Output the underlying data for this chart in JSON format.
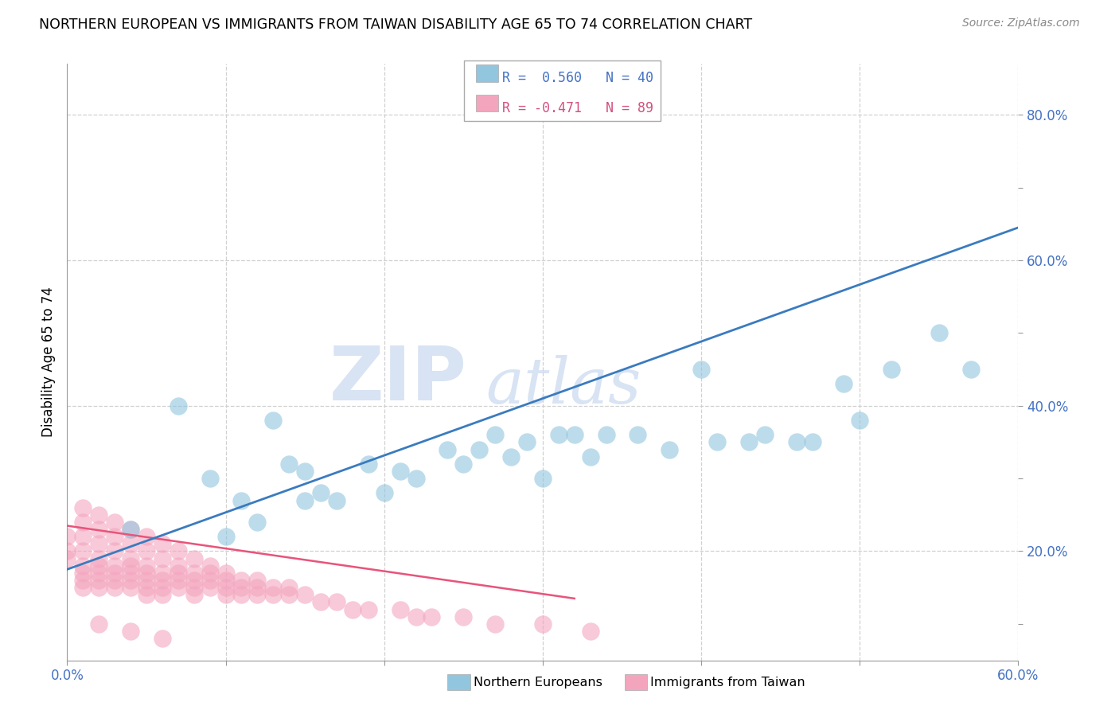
{
  "title": "NORTHERN EUROPEAN VS IMMIGRANTS FROM TAIWAN DISABILITY AGE 65 TO 74 CORRELATION CHART",
  "source": "Source: ZipAtlas.com",
  "ylabel": "Disability Age 65 to 74",
  "x_min": 0.0,
  "x_max": 0.6,
  "y_min": 0.05,
  "y_max": 0.87,
  "blue_color": "#92c5de",
  "pink_color": "#f4a5be",
  "blue_line_color": "#3a7bbf",
  "pink_line_color": "#e8547a",
  "watermark_text": "ZIP",
  "watermark_text2": "atlas",
  "blue_scatter_x": [
    0.04,
    0.07,
    0.09,
    0.1,
    0.11,
    0.12,
    0.13,
    0.14,
    0.15,
    0.15,
    0.16,
    0.17,
    0.19,
    0.2,
    0.21,
    0.22,
    0.24,
    0.25,
    0.26,
    0.27,
    0.28,
    0.29,
    0.3,
    0.31,
    0.32,
    0.33,
    0.34,
    0.36,
    0.38,
    0.4,
    0.41,
    0.43,
    0.44,
    0.46,
    0.47,
    0.49,
    0.5,
    0.52,
    0.55,
    0.57
  ],
  "blue_scatter_y": [
    0.23,
    0.4,
    0.3,
    0.22,
    0.27,
    0.24,
    0.38,
    0.32,
    0.27,
    0.31,
    0.28,
    0.27,
    0.32,
    0.28,
    0.31,
    0.3,
    0.34,
    0.32,
    0.34,
    0.36,
    0.33,
    0.35,
    0.3,
    0.36,
    0.36,
    0.33,
    0.36,
    0.36,
    0.34,
    0.45,
    0.35,
    0.35,
    0.36,
    0.35,
    0.35,
    0.43,
    0.38,
    0.45,
    0.5,
    0.45
  ],
  "blue_line_x0": 0.0,
  "blue_line_y0": 0.175,
  "blue_line_x1": 0.6,
  "blue_line_y1": 0.645,
  "pink_line_x0": 0.0,
  "pink_line_y0": 0.235,
  "pink_line_x1": 0.32,
  "pink_line_y1": 0.135,
  "pink_scatter_x": [
    0.0,
    0.0,
    0.0,
    0.01,
    0.01,
    0.01,
    0.01,
    0.01,
    0.01,
    0.01,
    0.01,
    0.02,
    0.02,
    0.02,
    0.02,
    0.02,
    0.02,
    0.02,
    0.02,
    0.03,
    0.03,
    0.03,
    0.03,
    0.03,
    0.03,
    0.03,
    0.04,
    0.04,
    0.04,
    0.04,
    0.04,
    0.04,
    0.04,
    0.05,
    0.05,
    0.05,
    0.05,
    0.05,
    0.05,
    0.05,
    0.06,
    0.06,
    0.06,
    0.06,
    0.06,
    0.06,
    0.07,
    0.07,
    0.07,
    0.07,
    0.07,
    0.08,
    0.08,
    0.08,
    0.08,
    0.08,
    0.09,
    0.09,
    0.09,
    0.09,
    0.1,
    0.1,
    0.1,
    0.1,
    0.11,
    0.11,
    0.11,
    0.12,
    0.12,
    0.12,
    0.13,
    0.13,
    0.14,
    0.14,
    0.15,
    0.16,
    0.17,
    0.18,
    0.19,
    0.21,
    0.22,
    0.23,
    0.25,
    0.27,
    0.3,
    0.33,
    0.02,
    0.04,
    0.06
  ],
  "pink_scatter_y": [
    0.22,
    0.2,
    0.19,
    0.26,
    0.24,
    0.22,
    0.2,
    0.18,
    0.17,
    0.16,
    0.15,
    0.25,
    0.23,
    0.21,
    0.19,
    0.18,
    0.17,
    0.16,
    0.15,
    0.24,
    0.22,
    0.2,
    0.18,
    0.17,
    0.16,
    0.15,
    0.23,
    0.21,
    0.19,
    0.18,
    0.17,
    0.16,
    0.15,
    0.22,
    0.2,
    0.18,
    0.17,
    0.16,
    0.15,
    0.14,
    0.21,
    0.19,
    0.17,
    0.16,
    0.15,
    0.14,
    0.2,
    0.18,
    0.17,
    0.16,
    0.15,
    0.19,
    0.17,
    0.16,
    0.15,
    0.14,
    0.18,
    0.17,
    0.16,
    0.15,
    0.17,
    0.16,
    0.15,
    0.14,
    0.16,
    0.15,
    0.14,
    0.16,
    0.15,
    0.14,
    0.15,
    0.14,
    0.15,
    0.14,
    0.14,
    0.13,
    0.13,
    0.12,
    0.12,
    0.12,
    0.11,
    0.11,
    0.11,
    0.1,
    0.1,
    0.09,
    0.1,
    0.09,
    0.08
  ]
}
